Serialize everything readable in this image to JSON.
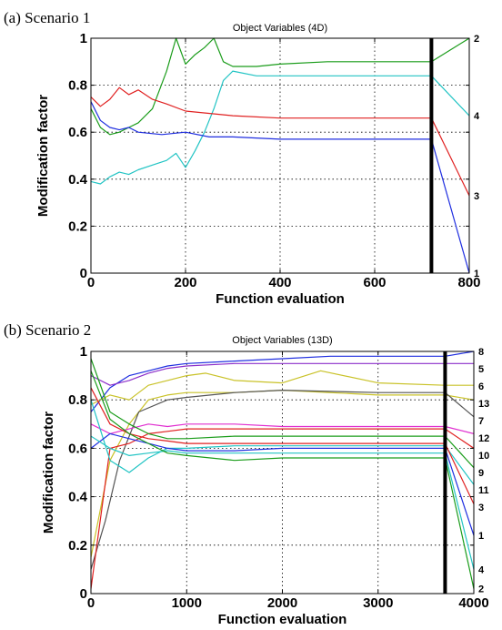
{
  "chart_data": [
    {
      "type": "line",
      "caption": "(a) Scenario 1",
      "title": "Object Variables (4D)",
      "xlabel": "Function evaluation",
      "ylabel": "Modification factor",
      "xlim": [
        0,
        800
      ],
      "ylim": [
        0,
        1
      ],
      "xticks": [
        "0",
        "200",
        "400",
        "600",
        "800"
      ],
      "yticks": [
        "0",
        "0.2",
        "0.4",
        "0.6",
        "0.8",
        "1"
      ],
      "xtick_values": [
        0,
        200,
        400,
        600,
        800
      ],
      "ytick_values": [
        0,
        0.2,
        0.4,
        0.6,
        0.8,
        1
      ],
      "grid": true,
      "vertical_marker_x": 720,
      "series": [
        {
          "color": "#1a9c1a",
          "end_label": "2",
          "x": [
            0,
            20,
            40,
            60,
            80,
            100,
            130,
            160,
            180,
            200,
            220,
            240,
            260,
            280,
            300,
            350,
            400,
            500,
            600,
            700,
            720,
            800
          ],
          "y": [
            0.7,
            0.62,
            0.59,
            0.6,
            0.62,
            0.64,
            0.7,
            0.86,
            1.0,
            0.89,
            0.93,
            0.96,
            1.0,
            0.9,
            0.88,
            0.88,
            0.89,
            0.9,
            0.9,
            0.9,
            0.9,
            1.0
          ]
        },
        {
          "color": "#22c4c4",
          "end_label": "4",
          "x": [
            0,
            20,
            40,
            60,
            80,
            100,
            130,
            160,
            180,
            200,
            220,
            240,
            260,
            280,
            300,
            350,
            400,
            500,
            600,
            700,
            720,
            800
          ],
          "y": [
            0.39,
            0.38,
            0.41,
            0.43,
            0.42,
            0.44,
            0.46,
            0.48,
            0.51,
            0.45,
            0.52,
            0.6,
            0.7,
            0.82,
            0.86,
            0.84,
            0.84,
            0.84,
            0.84,
            0.84,
            0.84,
            0.67
          ]
        },
        {
          "color": "#e02020",
          "end_label": "3",
          "x": [
            0,
            20,
            40,
            60,
            80,
            100,
            130,
            160,
            200,
            300,
            400,
            500,
            600,
            700,
            720,
            800
          ],
          "y": [
            0.75,
            0.71,
            0.74,
            0.79,
            0.76,
            0.78,
            0.74,
            0.72,
            0.69,
            0.67,
            0.66,
            0.66,
            0.66,
            0.66,
            0.66,
            0.33
          ]
        },
        {
          "color": "#1f2ee0",
          "end_label": "1",
          "x": [
            0,
            20,
            40,
            60,
            80,
            100,
            150,
            200,
            250,
            300,
            400,
            500,
            600,
            700,
            720,
            800
          ],
          "y": [
            0.73,
            0.65,
            0.62,
            0.61,
            0.62,
            0.6,
            0.59,
            0.6,
            0.58,
            0.58,
            0.57,
            0.57,
            0.57,
            0.57,
            0.57,
            0.0
          ]
        }
      ]
    },
    {
      "type": "line",
      "caption": "(b) Scenario 2",
      "title": "Object Variables (13D)",
      "xlabel": "Function evaluation",
      "ylabel": "Modification factor",
      "xlim": [
        0,
        4000
      ],
      "ylim": [
        0,
        1
      ],
      "xticks": [
        "0",
        "1000",
        "2000",
        "3000",
        "4000"
      ],
      "yticks": [
        "0",
        "0.2",
        "0.4",
        "0.6",
        "0.8",
        "1"
      ],
      "xtick_values": [
        0,
        1000,
        2000,
        3000,
        4000
      ],
      "ytick_values": [
        0,
        0.2,
        0.4,
        0.6,
        0.8,
        1
      ],
      "grid": true,
      "vertical_marker_x": 3700,
      "series": [
        {
          "color": "#1f2ee0",
          "end_label": "8",
          "x": [
            0,
            200,
            400,
            600,
            800,
            1000,
            1500,
            2000,
            2500,
            3000,
            3700,
            4000
          ],
          "y": [
            0.75,
            0.85,
            0.9,
            0.92,
            0.94,
            0.95,
            0.96,
            0.97,
            0.98,
            0.98,
            0.98,
            1.0
          ]
        },
        {
          "color": "#8c2ec9",
          "end_label": "5",
          "x": [
            0,
            200,
            400,
            600,
            800,
            1000,
            1500,
            2000,
            2500,
            3000,
            3700,
            4000
          ],
          "y": [
            0.9,
            0.86,
            0.88,
            0.91,
            0.93,
            0.94,
            0.95,
            0.95,
            0.95,
            0.95,
            0.95,
            0.95
          ]
        },
        {
          "color": "#c9c228",
          "end_label": "6",
          "x": [
            0,
            200,
            400,
            600,
            800,
            1000,
            1200,
            1500,
            2000,
            2400,
            3000,
            3700,
            4000
          ],
          "y": [
            0.78,
            0.82,
            0.8,
            0.86,
            0.88,
            0.9,
            0.91,
            0.88,
            0.87,
            0.92,
            0.87,
            0.86,
            0.86
          ]
        },
        {
          "color": "#c9c228",
          "end_label": "13",
          "x": [
            0,
            200,
            400,
            600,
            800,
            1000,
            1500,
            2000,
            3000,
            3700,
            4000
          ],
          "y": [
            0.15,
            0.55,
            0.7,
            0.8,
            0.82,
            0.83,
            0.83,
            0.84,
            0.82,
            0.82,
            0.8
          ]
        },
        {
          "color": "#555555",
          "end_label": "7",
          "x": [
            0,
            150,
            300,
            500,
            800,
            1000,
            1500,
            2000,
            3000,
            3700,
            4000
          ],
          "y": [
            0.1,
            0.3,
            0.55,
            0.75,
            0.8,
            0.81,
            0.83,
            0.84,
            0.83,
            0.83,
            0.73
          ]
        },
        {
          "color": "#e02ed0",
          "end_label": "12",
          "x": [
            0,
            200,
            400,
            600,
            800,
            1000,
            1500,
            2000,
            3000,
            3700,
            4000
          ],
          "y": [
            0.7,
            0.66,
            0.68,
            0.7,
            0.69,
            0.7,
            0.7,
            0.69,
            0.69,
            0.69,
            0.66
          ]
        },
        {
          "color": "#e02020",
          "end_label": "10",
          "x": [
            0,
            200,
            400,
            600,
            800,
            1000,
            1500,
            2000,
            3000,
            3700,
            4000
          ],
          "y": [
            0.02,
            0.6,
            0.62,
            0.66,
            0.67,
            0.68,
            0.68,
            0.68,
            0.68,
            0.68,
            0.6
          ]
        },
        {
          "color": "#1a9c1a",
          "end_label": "9",
          "x": [
            0,
            200,
            400,
            600,
            800,
            1000,
            1500,
            2000,
            3000,
            3700,
            4000
          ],
          "y": [
            0.97,
            0.75,
            0.7,
            0.66,
            0.64,
            0.64,
            0.65,
            0.65,
            0.65,
            0.65,
            0.52
          ]
        },
        {
          "color": "#22c4c4",
          "end_label": "11",
          "x": [
            0,
            200,
            400,
            600,
            800,
            1000,
            1500,
            2000,
            3000,
            3700,
            4000
          ],
          "y": [
            0.8,
            0.55,
            0.5,
            0.56,
            0.6,
            0.6,
            0.61,
            0.61,
            0.61,
            0.61,
            0.45
          ]
        },
        {
          "color": "#e02020",
          "end_label": "3",
          "x": [
            0,
            200,
            400,
            600,
            800,
            1000,
            1500,
            2000,
            3000,
            3700,
            4000
          ],
          "y": [
            0.85,
            0.7,
            0.66,
            0.64,
            0.63,
            0.62,
            0.62,
            0.62,
            0.62,
            0.62,
            0.37
          ]
        },
        {
          "color": "#1f2ee0",
          "end_label": "1",
          "x": [
            0,
            200,
            400,
            600,
            800,
            1000,
            1500,
            2000,
            3000,
            3700,
            4000
          ],
          "y": [
            0.6,
            0.66,
            0.64,
            0.62,
            0.6,
            0.59,
            0.59,
            0.6,
            0.6,
            0.6,
            0.24
          ]
        },
        {
          "color": "#22c4c4",
          "end_label": "4",
          "x": [
            0,
            200,
            400,
            600,
            800,
            1000,
            1500,
            2000,
            3000,
            3700,
            4000
          ],
          "y": [
            0.65,
            0.6,
            0.57,
            0.58,
            0.59,
            0.58,
            0.58,
            0.58,
            0.58,
            0.58,
            0.1
          ]
        },
        {
          "color": "#1a9c1a",
          "end_label": "2",
          "x": [
            0,
            200,
            400,
            600,
            800,
            1000,
            1500,
            2000,
            3000,
            3700,
            4000
          ],
          "y": [
            0.92,
            0.72,
            0.66,
            0.62,
            0.58,
            0.57,
            0.55,
            0.56,
            0.56,
            0.56,
            0.02
          ]
        }
      ]
    }
  ]
}
